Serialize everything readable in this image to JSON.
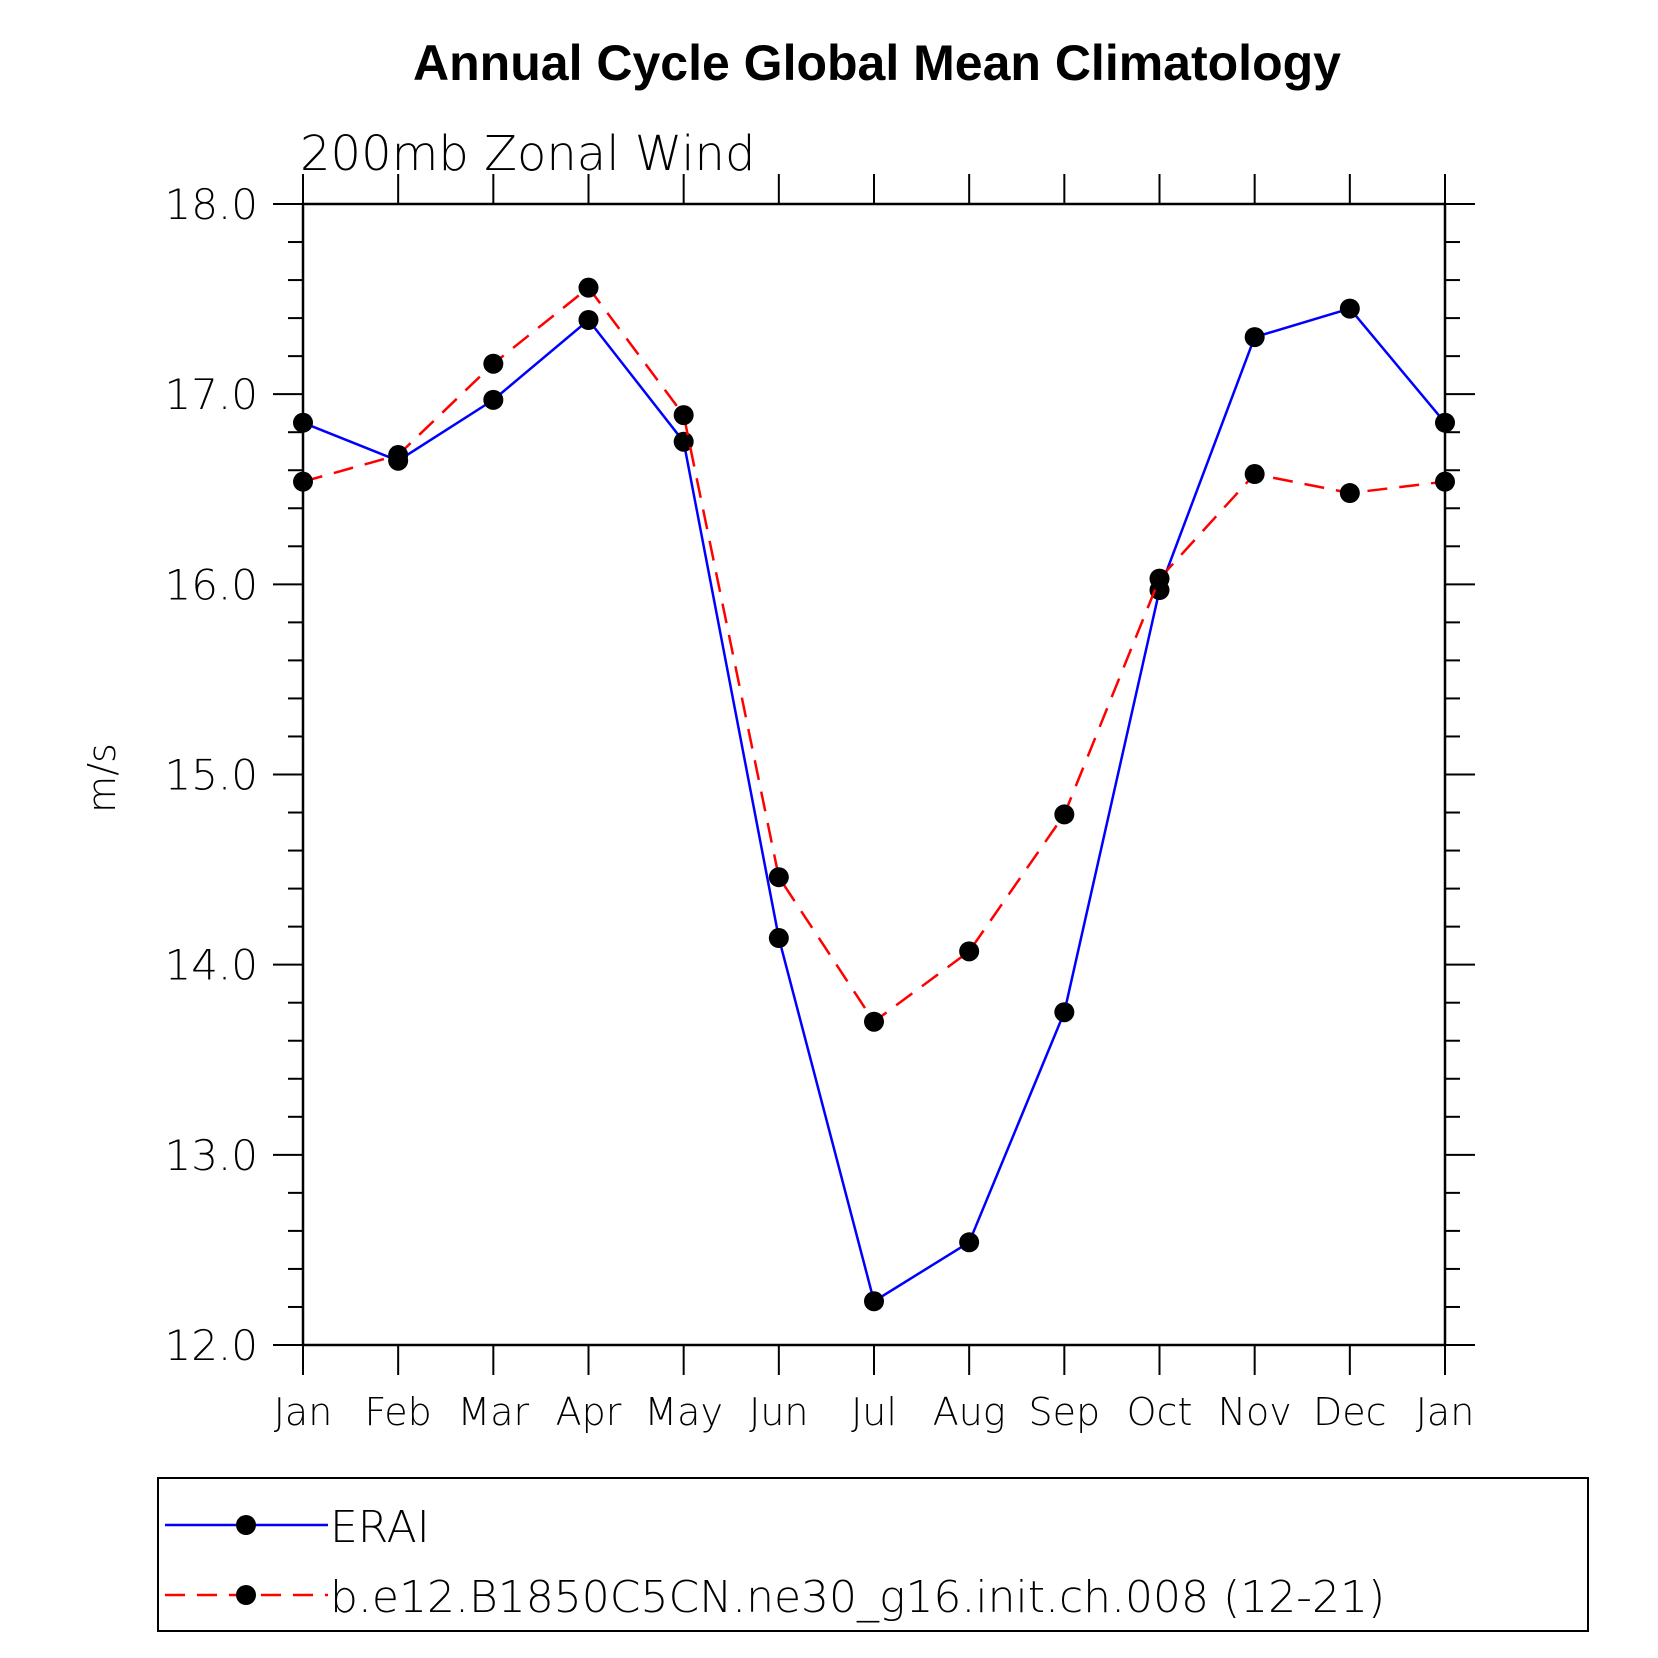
{
  "chart_data": {
    "type": "line",
    "title": "Annual Cycle Global Mean Climatology",
    "subtitle": "200mb Zonal Wind",
    "xlabel": "",
    "ylabel": "m/s",
    "categories": [
      "Jan",
      "Feb",
      "Mar",
      "Apr",
      "May",
      "Jun",
      "Jul",
      "Aug",
      "Sep",
      "Oct",
      "Nov",
      "Dec",
      "Jan"
    ],
    "ylim": [
      12.0,
      18.0
    ],
    "yticks": [
      "12.0",
      "13.0",
      "14.0",
      "15.0",
      "16.0",
      "17.0",
      "18.0"
    ],
    "series": [
      {
        "name": "ERAI",
        "color": "#0000ff",
        "dash": "solid",
        "values": [
          16.85,
          16.65,
          16.97,
          17.39,
          16.75,
          14.14,
          12.23,
          12.54,
          13.75,
          15.97,
          17.3,
          17.45,
          16.85
        ]
      },
      {
        "name": "b.e12.B1850C5CN.ne30_g16.init.ch.008 (12-21)",
        "color": "#ff0000",
        "dash": "dashed",
        "values": [
          16.54,
          16.68,
          17.16,
          17.56,
          16.89,
          14.46,
          13.7,
          14.07,
          14.79,
          16.03,
          16.58,
          16.48,
          16.54
        ]
      }
    ],
    "legend": "bottom",
    "grid": false
  }
}
